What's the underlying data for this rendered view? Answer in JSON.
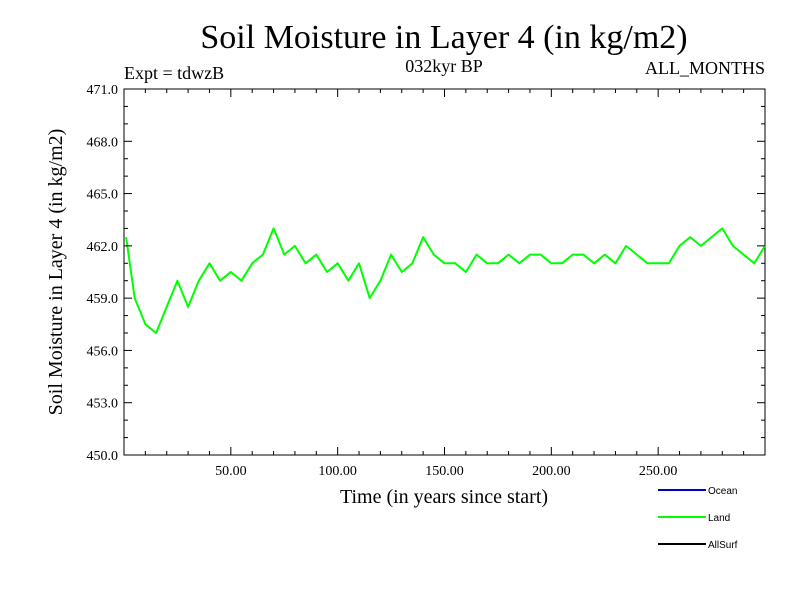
{
  "chart_data": {
    "type": "line",
    "title": "Soil Moisture in Layer 4 (in kg/m2)",
    "subtitle_left": "Expt = tdwzB",
    "subtitle_center": "032kyr BP",
    "subtitle_right": "ALL_MONTHS",
    "xlabel": "Time (in years since start)",
    "ylabel": "Soil Moisture in Layer 4 (in kg/m2)",
    "xlim": [
      0,
      300
    ],
    "ylim": [
      450,
      471
    ],
    "x_ticks": [
      50,
      100,
      150,
      200,
      250
    ],
    "x_tick_labels": [
      "50.00",
      "100.00",
      "150.00",
      "200.00",
      "250.00"
    ],
    "y_ticks": [
      450,
      453,
      456,
      459,
      462,
      465,
      468,
      471
    ],
    "y_tick_labels": [
      "450.0",
      "453.0",
      "456.0",
      "459.0",
      "462.0",
      "465.0",
      "468.0",
      "471.0"
    ],
    "series": [
      {
        "name": "Ocean",
        "color": "#0000cc",
        "values": []
      },
      {
        "name": "Land",
        "color": "#00ff00",
        "x": [
          1,
          5,
          10,
          15,
          20,
          25,
          30,
          35,
          40,
          45,
          50,
          55,
          60,
          65,
          70,
          75,
          80,
          85,
          90,
          95,
          100,
          105,
          110,
          115,
          120,
          125,
          130,
          135,
          140,
          145,
          150,
          155,
          160,
          165,
          170,
          175,
          180,
          185,
          190,
          195,
          200,
          205,
          210,
          215,
          220,
          225,
          230,
          235,
          240,
          245,
          250,
          255,
          260,
          265,
          270,
          275,
          280,
          285,
          290,
          295,
          300
        ],
        "values": [
          462.5,
          459,
          457.5,
          457,
          458.5,
          460,
          458.5,
          460,
          461,
          460,
          460.5,
          460,
          461,
          461.5,
          463,
          461.5,
          462,
          461,
          461.5,
          460.5,
          461,
          460,
          461,
          459,
          460,
          461.5,
          460.5,
          461,
          462.5,
          461.5,
          461,
          461,
          460.5,
          461.5,
          461,
          461,
          461.5,
          461,
          461.5,
          461.5,
          461,
          461,
          461.5,
          461.5,
          461,
          461.5,
          461,
          462,
          461.5,
          461,
          461,
          461,
          462,
          462.5,
          462,
          462.5,
          463,
          462,
          461.5,
          461,
          462
        ]
      },
      {
        "name": "AllSurf",
        "color": "#000000",
        "values": []
      }
    ],
    "grid": false,
    "legend_position": "bottom-right"
  }
}
